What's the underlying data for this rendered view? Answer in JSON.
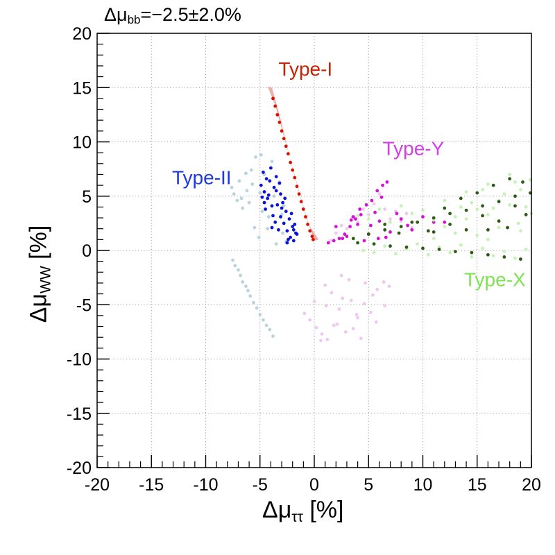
{
  "title": {
    "prefix": "Δμ",
    "sub": "bb",
    "suffix": "=−2.5±2.0%"
  },
  "xlabel": {
    "prefix": "Δμ",
    "sub": "ττ",
    "suffix": " [%]"
  },
  "ylabel": {
    "prefix": "Δμ",
    "sub": "WW",
    "suffix": " [%]"
  },
  "chart_data": {
    "type": "scatter",
    "title": "Δμbb=−2.5±2.0%",
    "xlabel": "Δμττ [%]",
    "ylabel": "ΔμWW [%]",
    "xlim": [
      -20,
      20
    ],
    "ylim": [
      -20,
      20
    ],
    "xticks": [
      -20,
      -15,
      -10,
      -5,
      0,
      5,
      10,
      15,
      20
    ],
    "yticks": [
      -20,
      -15,
      -10,
      -5,
      0,
      5,
      10,
      15,
      20
    ],
    "grid": true,
    "annotations": [
      {
        "text": "Type-I",
        "x": -3.3,
        "y": 16.1,
        "color": "#cc2200"
      },
      {
        "text": "Type-II",
        "x": -13.1,
        "y": 6.1,
        "color": "#1e3ae0"
      },
      {
        "text": "Type-Y",
        "x": 6.3,
        "y": 8.8,
        "color": "#d63ee6"
      },
      {
        "text": "Type-X",
        "x": 13.8,
        "y": -3.3,
        "color": "#7ee353"
      }
    ],
    "series": [
      {
        "name": "Type-I (all)",
        "color": "#e8a8a0",
        "shape": "band",
        "x": [
          -4.3,
          -3.9,
          -3.2,
          -2.6,
          -2.0,
          -1.3,
          -0.6,
          0.4,
          0.0,
          -0.7,
          -1.4,
          -2.1,
          -2.8,
          -3.6
        ],
        "y": [
          15.1,
          15.0,
          12.5,
          10.0,
          7.5,
          5.0,
          2.5,
          1.0,
          0.9,
          3.0,
          5.5,
          8.0,
          10.5,
          13.4
        ]
      },
      {
        "name": "Type-I (preferred)",
        "color": "#dd1100",
        "x": [
          -3.8,
          -3.6,
          -3.4,
          -3.2,
          -3.0,
          -2.8,
          -2.6,
          -2.4,
          -2.2,
          -2.0,
          -1.8,
          -1.6,
          -1.4,
          -1.2,
          -1.0,
          -0.8,
          -0.6,
          -0.4,
          -0.2,
          -0.1
        ],
        "y": [
          14.0,
          13.3,
          12.5,
          11.8,
          11.0,
          10.3,
          9.6,
          8.9,
          8.1,
          7.4,
          6.7,
          5.9,
          5.2,
          4.5,
          3.8,
          3.1,
          2.4,
          1.8,
          1.3,
          1.0
        ]
      },
      {
        "name": "Type-II (all)",
        "color": "#b9d3df",
        "x": [
          -7.5,
          -7.3,
          -7.0,
          -6.8,
          -6.6,
          -6.3,
          -6.1,
          -5.9,
          -5.6,
          -5.3,
          -5.0,
          -4.7,
          -4.4,
          -4.1,
          -3.8,
          -7.6,
          -7.4,
          -7.1,
          -6.9,
          -6.6,
          -6.3,
          -6.0,
          -5.7,
          -5.4,
          -5.0,
          -4.6,
          -4.2,
          -3.9,
          -3.6,
          -5.5,
          -3.2,
          -2.9,
          -4.8,
          -3.5,
          -2.6,
          -6.2,
          -4.0,
          -5.1,
          -2.8,
          -3.7,
          -6.7,
          -4.3,
          -5.8,
          -3.0,
          -4.9
        ],
        "y": [
          -0.9,
          -1.4,
          -1.8,
          -2.3,
          -2.9,
          -3.3,
          -3.7,
          -4.2,
          -4.8,
          -5.3,
          -5.9,
          -6.4,
          -6.9,
          -7.3,
          -7.9,
          5.8,
          5.2,
          4.6,
          6.4,
          3.9,
          7.1,
          4.4,
          6.1,
          8.6,
          5.3,
          7.0,
          3.1,
          8.2,
          2.6,
          2.1,
          6.3,
          1.6,
          3.6,
          0.6,
          0.8,
          5.5,
          7.6,
          1.2,
          4.1,
          5.0,
          4.8,
          2.0,
          7.4,
          3.3,
          8.8
        ]
      },
      {
        "name": "Type-II (preferred)",
        "color": "#0a14d6",
        "x": [
          -4.9,
          -4.6,
          -4.3,
          -4.0,
          -3.7,
          -3.4,
          -3.1,
          -2.8,
          -2.5,
          -2.2,
          -1.9,
          -1.6,
          -4.8,
          -4.5,
          -4.1,
          -3.8,
          -3.5,
          -3.2,
          -2.9,
          -2.6,
          -2.3,
          -2.0,
          -1.7,
          -4.7,
          -4.4,
          -3.9,
          -3.6,
          -3.3,
          -3.0,
          -2.7,
          -2.4,
          -4.2,
          -3.5,
          -2.1,
          -1.8,
          -4.6,
          -3.9,
          -3.1,
          -2.5,
          -1.9
        ],
        "y": [
          6.0,
          5.4,
          4.8,
          7.6,
          5.8,
          4.2,
          3.1,
          2.5,
          1.8,
          1.2,
          0.9,
          1.5,
          4.9,
          3.8,
          6.4,
          3.2,
          5.5,
          6.2,
          4.4,
          3.6,
          2.9,
          2.2,
          1.6,
          7.2,
          6.6,
          4.1,
          2.6,
          1.9,
          3.9,
          4.8,
          1.0,
          5.1,
          6.8,
          3.4,
          2.4,
          4.4,
          2.1,
          5.2,
          0.7,
          1.9
        ]
      },
      {
        "name": "Type-Y (all)",
        "color": "#efc8ef",
        "x": [
          1.5,
          2.0,
          2.5,
          3.0,
          3.5,
          4.0,
          4.5,
          5.0,
          5.5,
          6.0,
          6.5,
          7.0,
          7.5,
          8.0,
          8.5,
          9.0,
          -0.9,
          -0.4,
          0.2,
          0.7,
          1.2,
          1.8,
          2.3,
          2.9,
          3.4,
          4.0,
          4.6,
          5.2,
          5.8,
          6.4,
          0.0,
          1.0,
          2.1,
          3.2,
          4.3,
          5.4,
          6.5,
          0.6,
          1.6,
          2.6,
          3.6,
          4.7,
          5.7,
          1.1,
          2.5,
          3.9,
          6.9
        ],
        "y": [
          0.9,
          1.6,
          2.3,
          2.0,
          3.1,
          2.6,
          3.8,
          3.3,
          4.3,
          5.2,
          3.8,
          2.9,
          3.6,
          2.7,
          3.4,
          2.1,
          -5.8,
          -6.4,
          -7.1,
          -7.7,
          -8.2,
          -6.9,
          -5.4,
          -7.5,
          -4.6,
          -6.2,
          -4.9,
          -5.7,
          -3.6,
          -2.9,
          -4.7,
          -3.2,
          -6.8,
          -2.7,
          -8.1,
          -4.1,
          -5.1,
          -8.3,
          -3.9,
          -4.4,
          -7.2,
          -3.0,
          -6.6,
          -5.1,
          -2.3,
          -5.9,
          -3.3
        ]
      },
      {
        "name": "Type-Y (preferred)",
        "color": "#d411d4",
        "x": [
          1.3,
          1.8,
          2.3,
          2.8,
          3.3,
          3.8,
          4.3,
          4.8,
          5.3,
          5.8,
          6.3,
          6.7,
          2.0,
          3.0,
          4.0,
          5.0,
          6.0,
          7.0,
          8.0,
          9.0,
          10.0,
          11.0,
          12.0,
          2.6,
          3.6,
          4.6,
          5.6,
          6.6,
          7.6,
          8.6,
          4.2,
          5.2,
          6.2,
          3.4,
          5.9
        ],
        "y": [
          0.7,
          0.9,
          1.1,
          1.5,
          2.2,
          2.9,
          3.3,
          4.2,
          4.6,
          5.5,
          6.0,
          6.3,
          2.2,
          1.3,
          2.4,
          1.5,
          2.7,
          1.7,
          2.9,
          1.9,
          3.1,
          2.6,
          2.6,
          1.1,
          3.1,
          0.9,
          3.5,
          1.2,
          3.4,
          2.3,
          3.8,
          2.3,
          4.9,
          2.8,
          1.1
        ]
      },
      {
        "name": "Type-X (all)",
        "color": "#c6f2b8",
        "x": [
          4.0,
          5.0,
          6.0,
          7.0,
          8.0,
          9.0,
          10.0,
          11.0,
          12.0,
          13.0,
          14.0,
          15.0,
          16.0,
          17.0,
          18.0,
          19.0,
          19.9,
          4.5,
          5.5,
          6.5,
          7.5,
          8.5,
          9.5,
          10.5,
          11.5,
          12.5,
          13.5,
          14.5,
          15.5,
          16.5,
          17.5,
          18.5,
          19.5,
          12.0,
          13.0,
          14.0,
          15.0,
          16.0,
          17.0,
          18.0,
          19.0,
          20.0,
          14.5,
          15.5,
          16.5,
          17.5,
          18.5,
          19.5,
          11.0,
          13.5,
          16.0,
          18.8
        ],
        "y": [
          3.2,
          2.9,
          3.8,
          2.6,
          4.1,
          3.4,
          3.7,
          2.8,
          4.6,
          3.1,
          5.4,
          3.8,
          6.1,
          4.6,
          7.0,
          5.6,
          6.5,
          0.0,
          -0.2,
          0.4,
          -0.3,
          0.1,
          0.6,
          -0.4,
          0.3,
          -0.2,
          0.5,
          -0.6,
          0.2,
          -0.5,
          -0.1,
          -0.7,
          0.1,
          2.2,
          1.6,
          2.9,
          1.4,
          3.3,
          2.1,
          4.2,
          1.8,
          3.4,
          4.4,
          5.6,
          3.9,
          5.2,
          6.3,
          4.0,
          1.1,
          4.0,
          1.0,
          2.5
        ]
      },
      {
        "name": "Type-X (preferred)",
        "color": "#2d5a14",
        "x": [
          3.6,
          5.0,
          6.5,
          8.0,
          9.5,
          11.0,
          12.5,
          14.0,
          15.5,
          17.0,
          18.5,
          19.9,
          4.0,
          5.5,
          7.0,
          8.5,
          10.0,
          11.5,
          13.0,
          14.5,
          16.0,
          17.5,
          19.0,
          11.0,
          12.5,
          14.0,
          15.5,
          17.0,
          18.5,
          19.5,
          12.0,
          13.5,
          15.0,
          16.5,
          18.0,
          19.2,
          9.0,
          10.5,
          6.5,
          7.8,
          16.0,
          17.8
        ],
        "y": [
          1.1,
          1.5,
          1.9,
          2.2,
          2.6,
          3.0,
          3.4,
          3.7,
          4.1,
          4.5,
          5.0,
          5.3,
          0.7,
          0.6,
          0.4,
          0.3,
          0.2,
          0.1,
          -0.1,
          -0.2,
          -0.4,
          -0.6,
          -0.8,
          1.7,
          2.4,
          1.9,
          3.2,
          2.7,
          4.1,
          3.3,
          3.9,
          4.8,
          5.3,
          6.0,
          6.6,
          6.3,
          2.6,
          1.8,
          2.4,
          1.6,
          1.9,
          2.1
        ]
      }
    ]
  }
}
